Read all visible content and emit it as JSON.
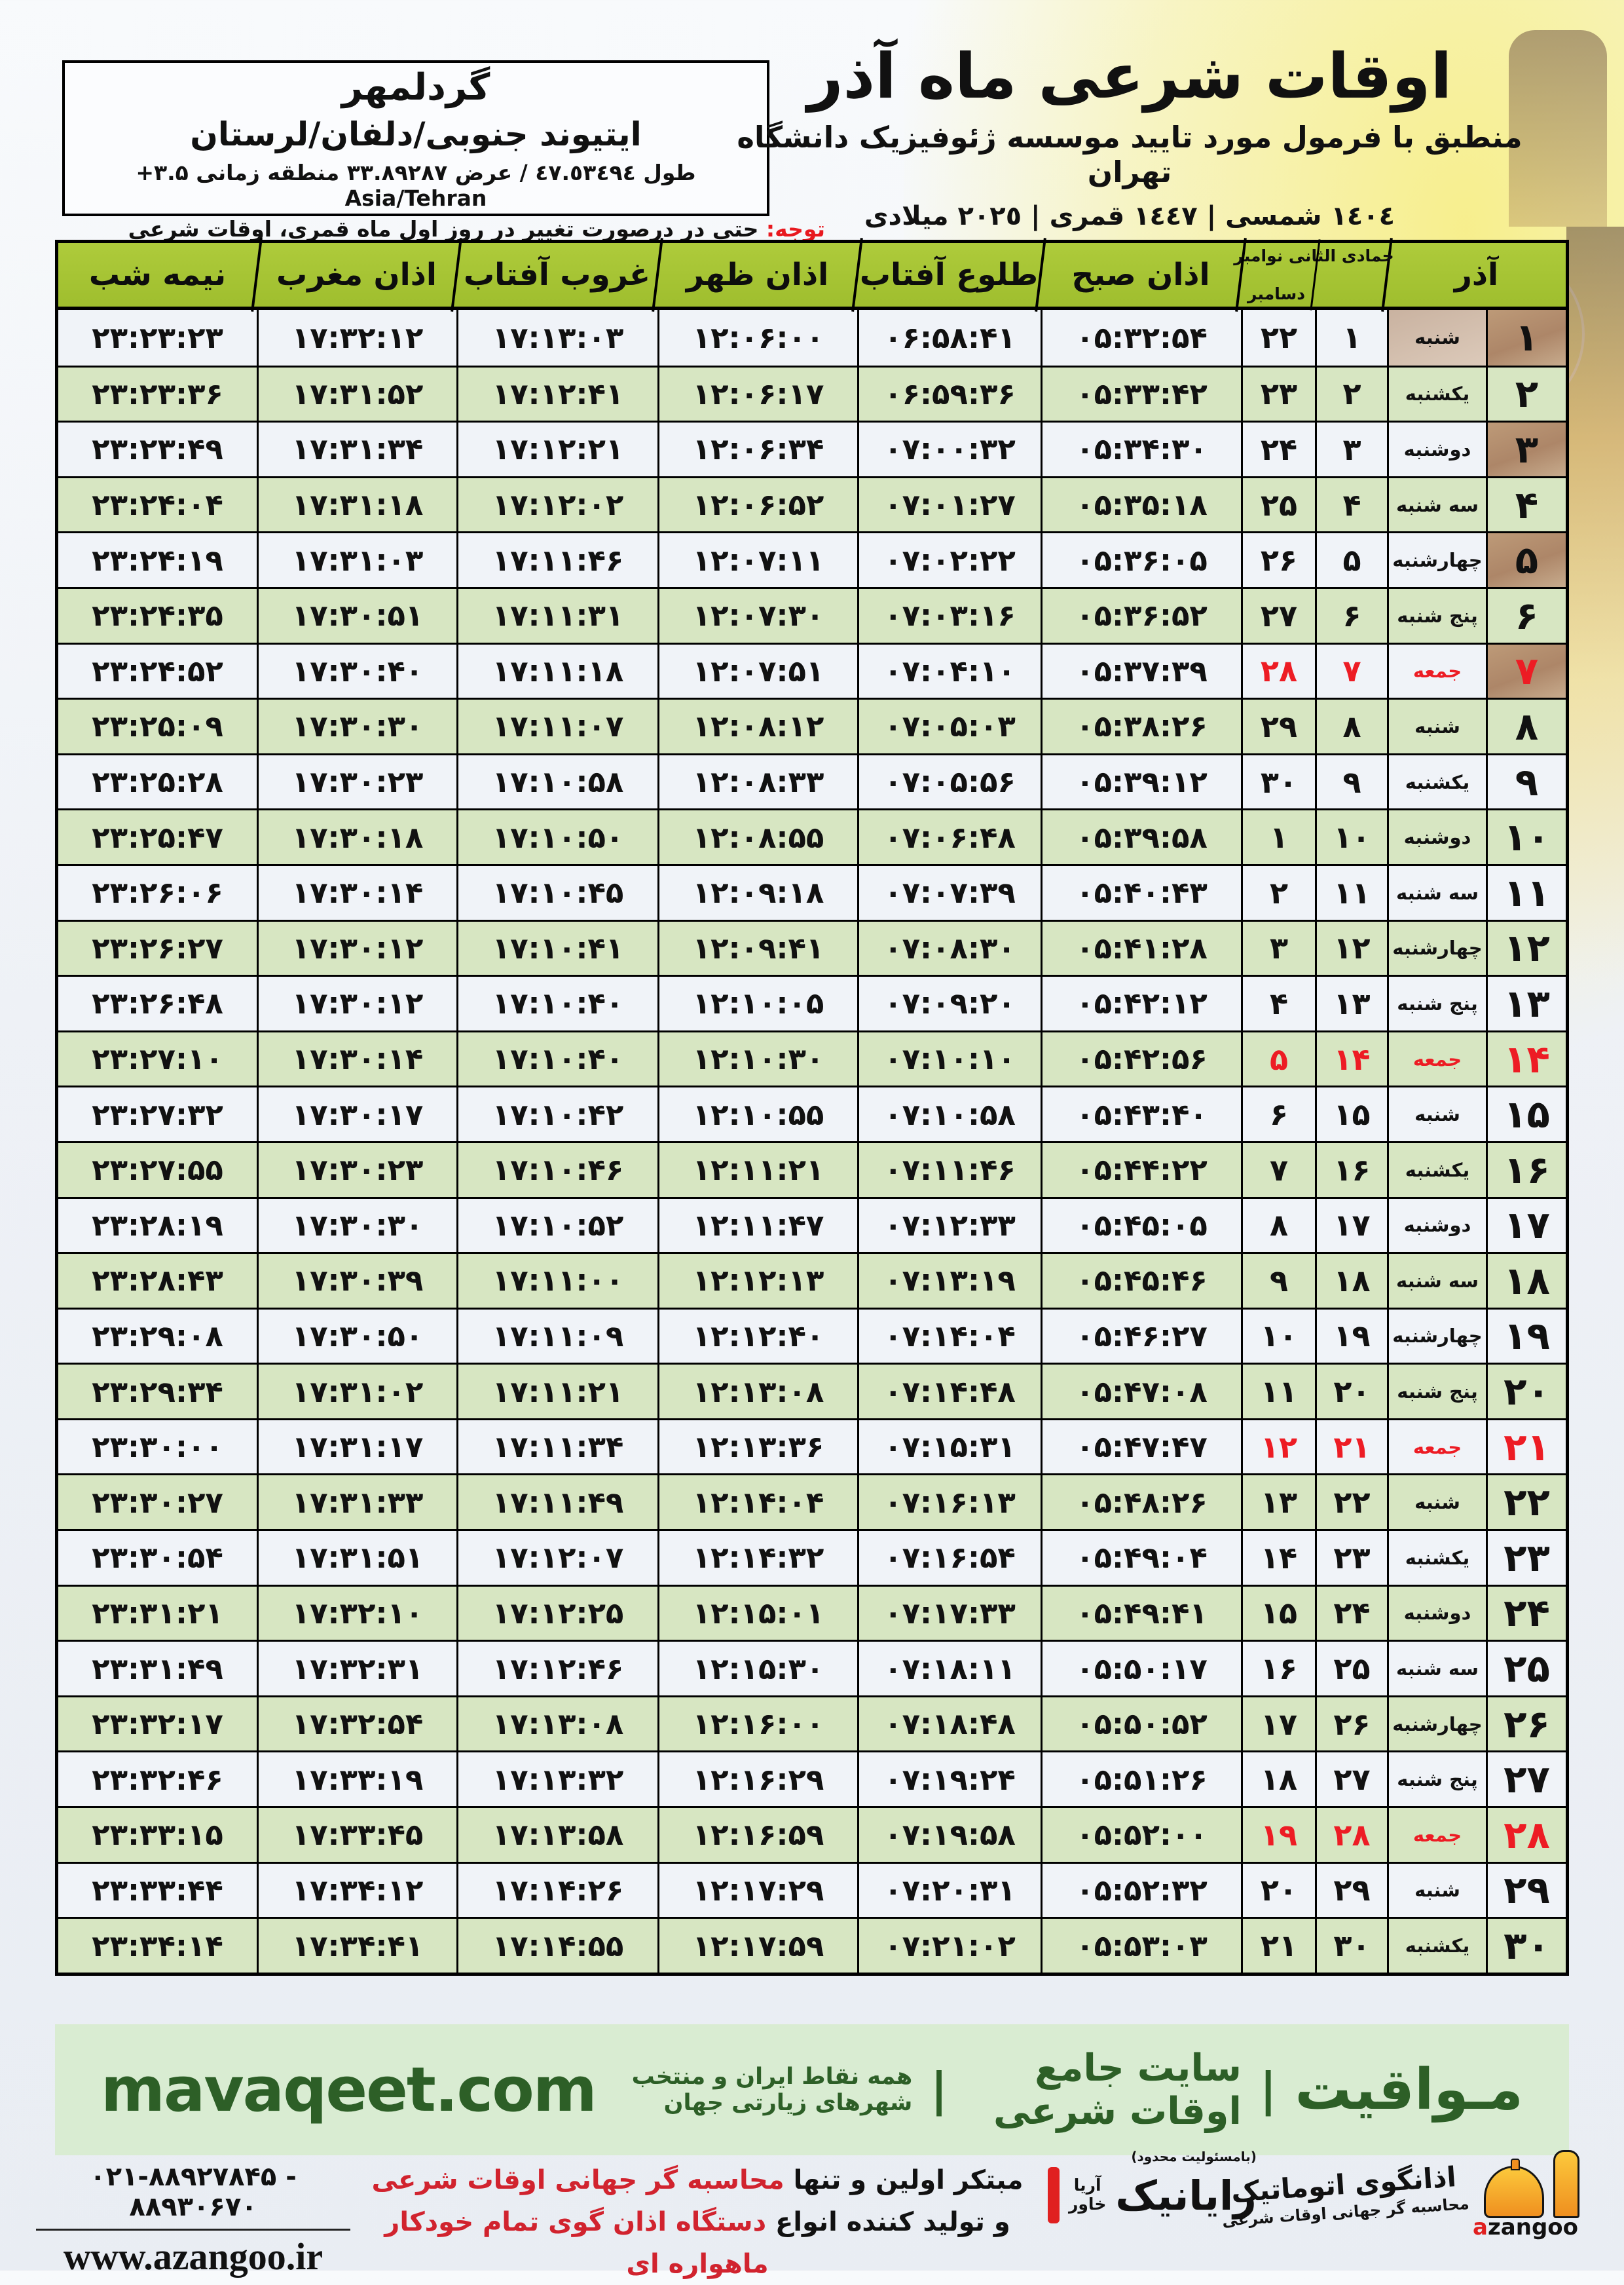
{
  "header": {
    "title": "اوقات شرعی ماه آذر",
    "subtitle": "منطبق با فرمول مورد تایید موسسه ژئوفیزیک دانشگاه تهران",
    "dates": "١٤٠٤ شمسی | ١٤٤٧ قمری | ٢٠٢٥ میلادی",
    "location": {
      "name": "گردلمهر",
      "region": "ایتیوند جنوبی/دلفان/لرستان",
      "coords": "طول ٤٧.٥٣٤٩٤ / عرض ٣٣.٨٩٢٨٧ منطقه زمانی ۳.۵+ Asia/Tehran"
    },
    "note_label": "توجه:",
    "note_text": " حتی در درصورت تغییر در روز اول ماه قمری، اوقات شرعی کماکان برای روزهای شمسی و میلادی معتبر است."
  },
  "table": {
    "header": {
      "azar": "آذر",
      "month_line1": "جمادی الثانی نوامبر",
      "month_line2": "دسامبر",
      "sobh": "اذان صبح",
      "tolu": "طلوع آفتاب",
      "zohr": "اذان ظهر",
      "ghorub": "غروب آفتاب",
      "maghreb": "اذان مغرب",
      "nime": "نیمه شب"
    },
    "rows": [
      {
        "azar": "۱",
        "weekday": "شنبه",
        "lunar": "۱",
        "greg": "۲۲",
        "sobh": "۰۵:۳۲:۵۴",
        "tolu": "۰۶:۵۸:۴۱",
        "zohr": "۱۲:۰۶:۰۰",
        "ghorub": "۱۷:۱۳:۰۳",
        "maghreb": "۱۷:۳۲:۱۲",
        "nime": "۲۳:۲۳:۲۳",
        "friday": false
      },
      {
        "azar": "۲",
        "weekday": "یکشنبه",
        "lunar": "۲",
        "greg": "۲۳",
        "sobh": "۰۵:۳۳:۴۲",
        "tolu": "۰۶:۵۹:۳۶",
        "zohr": "۱۲:۰۶:۱۷",
        "ghorub": "۱۷:۱۲:۴۱",
        "maghreb": "۱۷:۳۱:۵۲",
        "nime": "۲۳:۲۳:۳۶",
        "friday": false
      },
      {
        "azar": "۳",
        "weekday": "دوشنبه",
        "lunar": "۳",
        "greg": "۲۴",
        "sobh": "۰۵:۳۴:۳۰",
        "tolu": "۰۷:۰۰:۳۲",
        "zohr": "۱۲:۰۶:۳۴",
        "ghorub": "۱۷:۱۲:۲۱",
        "maghreb": "۱۷:۳۱:۳۴",
        "nime": "۲۳:۲۳:۴۹",
        "friday": false
      },
      {
        "azar": "۴",
        "weekday": "سه شنبه",
        "lunar": "۴",
        "greg": "۲۵",
        "sobh": "۰۵:۳۵:۱۸",
        "tolu": "۰۷:۰۱:۲۷",
        "zohr": "۱۲:۰۶:۵۲",
        "ghorub": "۱۷:۱۲:۰۲",
        "maghreb": "۱۷:۳۱:۱۸",
        "nime": "۲۳:۲۴:۰۴",
        "friday": false
      },
      {
        "azar": "۵",
        "weekday": "چهارشنبه",
        "lunar": "۵",
        "greg": "۲۶",
        "sobh": "۰۵:۳۶:۰۵",
        "tolu": "۰۷:۰۲:۲۲",
        "zohr": "۱۲:۰۷:۱۱",
        "ghorub": "۱۷:۱۱:۴۶",
        "maghreb": "۱۷:۳۱:۰۳",
        "nime": "۲۳:۲۴:۱۹",
        "friday": false
      },
      {
        "azar": "۶",
        "weekday": "پنج شنبه",
        "lunar": "۶",
        "greg": "۲۷",
        "sobh": "۰۵:۳۶:۵۲",
        "tolu": "۰۷:۰۳:۱۶",
        "zohr": "۱۲:۰۷:۳۰",
        "ghorub": "۱۷:۱۱:۳۱",
        "maghreb": "۱۷:۳۰:۵۱",
        "nime": "۲۳:۲۴:۳۵",
        "friday": false
      },
      {
        "azar": "۷",
        "weekday": "جمعه",
        "lunar": "۷",
        "greg": "۲۸",
        "sobh": "۰۵:۳۷:۳۹",
        "tolu": "۰۷:۰۴:۱۰",
        "zohr": "۱۲:۰۷:۵۱",
        "ghorub": "۱۷:۱۱:۱۸",
        "maghreb": "۱۷:۳۰:۴۰",
        "nime": "۲۳:۲۴:۵۲",
        "friday": true
      },
      {
        "azar": "۸",
        "weekday": "شنبه",
        "lunar": "۸",
        "greg": "۲۹",
        "sobh": "۰۵:۳۸:۲۶",
        "tolu": "۰۷:۰۵:۰۳",
        "zohr": "۱۲:۰۸:۱۲",
        "ghorub": "۱۷:۱۱:۰۷",
        "maghreb": "۱۷:۳۰:۳۰",
        "nime": "۲۳:۲۵:۰۹",
        "friday": false
      },
      {
        "azar": "۹",
        "weekday": "یکشنبه",
        "lunar": "۹",
        "greg": "۳۰",
        "sobh": "۰۵:۳۹:۱۲",
        "tolu": "۰۷:۰۵:۵۶",
        "zohr": "۱۲:۰۸:۳۳",
        "ghorub": "۱۷:۱۰:۵۸",
        "maghreb": "۱۷:۳۰:۲۳",
        "nime": "۲۳:۲۵:۲۸",
        "friday": false
      },
      {
        "azar": "۱۰",
        "weekday": "دوشنبه",
        "lunar": "۱۰",
        "greg": "۱",
        "sobh": "۰۵:۳۹:۵۸",
        "tolu": "۰۷:۰۶:۴۸",
        "zohr": "۱۲:۰۸:۵۵",
        "ghorub": "۱۷:۱۰:۵۰",
        "maghreb": "۱۷:۳۰:۱۸",
        "nime": "۲۳:۲۵:۴۷",
        "friday": false
      },
      {
        "azar": "۱۱",
        "weekday": "سه شنبه",
        "lunar": "۱۱",
        "greg": "۲",
        "sobh": "۰۵:۴۰:۴۳",
        "tolu": "۰۷:۰۷:۳۹",
        "zohr": "۱۲:۰۹:۱۸",
        "ghorub": "۱۷:۱۰:۴۵",
        "maghreb": "۱۷:۳۰:۱۴",
        "nime": "۲۳:۲۶:۰۶",
        "friday": false
      },
      {
        "azar": "۱۲",
        "weekday": "چهارشنبه",
        "lunar": "۱۲",
        "greg": "۳",
        "sobh": "۰۵:۴۱:۲۸",
        "tolu": "۰۷:۰۸:۳۰",
        "zohr": "۱۲:۰۹:۴۱",
        "ghorub": "۱۷:۱۰:۴۱",
        "maghreb": "۱۷:۳۰:۱۲",
        "nime": "۲۳:۲۶:۲۷",
        "friday": false
      },
      {
        "azar": "۱۳",
        "weekday": "پنج شنبه",
        "lunar": "۱۳",
        "greg": "۴",
        "sobh": "۰۵:۴۲:۱۲",
        "tolu": "۰۷:۰۹:۲۰",
        "zohr": "۱۲:۱۰:۰۵",
        "ghorub": "۱۷:۱۰:۴۰",
        "maghreb": "۱۷:۳۰:۱۲",
        "nime": "۲۳:۲۶:۴۸",
        "friday": false
      },
      {
        "azar": "۱۴",
        "weekday": "جمعه",
        "lunar": "۱۴",
        "greg": "۵",
        "sobh": "۰۵:۴۲:۵۶",
        "tolu": "۰۷:۱۰:۱۰",
        "zohr": "۱۲:۱۰:۳۰",
        "ghorub": "۱۷:۱۰:۴۰",
        "maghreb": "۱۷:۳۰:۱۴",
        "nime": "۲۳:۲۷:۱۰",
        "friday": true
      },
      {
        "azar": "۱۵",
        "weekday": "شنبه",
        "lunar": "۱۵",
        "greg": "۶",
        "sobh": "۰۵:۴۳:۴۰",
        "tolu": "۰۷:۱۰:۵۸",
        "zohr": "۱۲:۱۰:۵۵",
        "ghorub": "۱۷:۱۰:۴۲",
        "maghreb": "۱۷:۳۰:۱۷",
        "nime": "۲۳:۲۷:۳۲",
        "friday": false
      },
      {
        "azar": "۱۶",
        "weekday": "یکشنبه",
        "lunar": "۱۶",
        "greg": "۷",
        "sobh": "۰۵:۴۴:۲۲",
        "tolu": "۰۷:۱۱:۴۶",
        "zohr": "۱۲:۱۱:۲۱",
        "ghorub": "۱۷:۱۰:۴۶",
        "maghreb": "۱۷:۳۰:۲۳",
        "nime": "۲۳:۲۷:۵۵",
        "friday": false
      },
      {
        "azar": "۱۷",
        "weekday": "دوشنبه",
        "lunar": "۱۷",
        "greg": "۸",
        "sobh": "۰۵:۴۵:۰۵",
        "tolu": "۰۷:۱۲:۳۳",
        "zohr": "۱۲:۱۱:۴۷",
        "ghorub": "۱۷:۱۰:۵۲",
        "maghreb": "۱۷:۳۰:۳۰",
        "nime": "۲۳:۲۸:۱۹",
        "friday": false
      },
      {
        "azar": "۱۸",
        "weekday": "سه شنبه",
        "lunar": "۱۸",
        "greg": "۹",
        "sobh": "۰۵:۴۵:۴۶",
        "tolu": "۰۷:۱۳:۱۹",
        "zohr": "۱۲:۱۲:۱۳",
        "ghorub": "۱۷:۱۱:۰۰",
        "maghreb": "۱۷:۳۰:۳۹",
        "nime": "۲۳:۲۸:۴۳",
        "friday": false
      },
      {
        "azar": "۱۹",
        "weekday": "چهارشنبه",
        "lunar": "۱۹",
        "greg": "۱۰",
        "sobh": "۰۵:۴۶:۲۷",
        "tolu": "۰۷:۱۴:۰۴",
        "zohr": "۱۲:۱۲:۴۰",
        "ghorub": "۱۷:۱۱:۰۹",
        "maghreb": "۱۷:۳۰:۵۰",
        "nime": "۲۳:۲۹:۰۸",
        "friday": false
      },
      {
        "azar": "۲۰",
        "weekday": "پنج شنبه",
        "lunar": "۲۰",
        "greg": "۱۱",
        "sobh": "۰۵:۴۷:۰۸",
        "tolu": "۰۷:۱۴:۴۸",
        "zohr": "۱۲:۱۳:۰۸",
        "ghorub": "۱۷:۱۱:۲۱",
        "maghreb": "۱۷:۳۱:۰۲",
        "nime": "۲۳:۲۹:۳۴",
        "friday": false
      },
      {
        "azar": "۲۱",
        "weekday": "جمعه",
        "lunar": "۲۱",
        "greg": "۱۲",
        "sobh": "۰۵:۴۷:۴۷",
        "tolu": "۰۷:۱۵:۳۱",
        "zohr": "۱۲:۱۳:۳۶",
        "ghorub": "۱۷:۱۱:۳۴",
        "maghreb": "۱۷:۳۱:۱۷",
        "nime": "۲۳:۳۰:۰۰",
        "friday": true
      },
      {
        "azar": "۲۲",
        "weekday": "شنبه",
        "lunar": "۲۲",
        "greg": "۱۳",
        "sobh": "۰۵:۴۸:۲۶",
        "tolu": "۰۷:۱۶:۱۳",
        "zohr": "۱۲:۱۴:۰۴",
        "ghorub": "۱۷:۱۱:۴۹",
        "maghreb": "۱۷:۳۱:۳۳",
        "nime": "۲۳:۳۰:۲۷",
        "friday": false
      },
      {
        "azar": "۲۳",
        "weekday": "یکشنبه",
        "lunar": "۲۳",
        "greg": "۱۴",
        "sobh": "۰۵:۴۹:۰۴",
        "tolu": "۰۷:۱۶:۵۴",
        "zohr": "۱۲:۱۴:۳۲",
        "ghorub": "۱۷:۱۲:۰۷",
        "maghreb": "۱۷:۳۱:۵۱",
        "nime": "۲۳:۳۰:۵۴",
        "friday": false
      },
      {
        "azar": "۲۴",
        "weekday": "دوشنبه",
        "lunar": "۲۴",
        "greg": "۱۵",
        "sobh": "۰۵:۴۹:۴۱",
        "tolu": "۰۷:۱۷:۳۳",
        "zohr": "۱۲:۱۵:۰۱",
        "ghorub": "۱۷:۱۲:۲۵",
        "maghreb": "۱۷:۳۲:۱۰",
        "nime": "۲۳:۳۱:۲۱",
        "friday": false
      },
      {
        "azar": "۲۵",
        "weekday": "سه شنبه",
        "lunar": "۲۵",
        "greg": "۱۶",
        "sobh": "۰۵:۵۰:۱۷",
        "tolu": "۰۷:۱۸:۱۱",
        "zohr": "۱۲:۱۵:۳۰",
        "ghorub": "۱۷:۱۲:۴۶",
        "maghreb": "۱۷:۳۲:۳۱",
        "nime": "۲۳:۳۱:۴۹",
        "friday": false
      },
      {
        "azar": "۲۶",
        "weekday": "چهارشنبه",
        "lunar": "۲۶",
        "greg": "۱۷",
        "sobh": "۰۵:۵۰:۵۲",
        "tolu": "۰۷:۱۸:۴۸",
        "zohr": "۱۲:۱۶:۰۰",
        "ghorub": "۱۷:۱۳:۰۸",
        "maghreb": "۱۷:۳۲:۵۴",
        "nime": "۲۳:۳۲:۱۷",
        "friday": false
      },
      {
        "azar": "۲۷",
        "weekday": "پنج شنبه",
        "lunar": "۲۷",
        "greg": "۱۸",
        "sobh": "۰۵:۵۱:۲۶",
        "tolu": "۰۷:۱۹:۲۴",
        "zohr": "۱۲:۱۶:۲۹",
        "ghorub": "۱۷:۱۳:۳۲",
        "maghreb": "۱۷:۳۳:۱۹",
        "nime": "۲۳:۳۲:۴۶",
        "friday": false
      },
      {
        "azar": "۲۸",
        "weekday": "جمعه",
        "lunar": "۲۸",
        "greg": "۱۹",
        "sobh": "۰۵:۵۲:۰۰",
        "tolu": "۰۷:۱۹:۵۸",
        "zohr": "۱۲:۱۶:۵۹",
        "ghorub": "۱۷:۱۳:۵۸",
        "maghreb": "۱۷:۳۳:۴۵",
        "nime": "۲۳:۳۳:۱۵",
        "friday": true
      },
      {
        "azar": "۲۹",
        "weekday": "شنبه",
        "lunar": "۲۹",
        "greg": "۲۰",
        "sobh": "۰۵:۵۲:۳۲",
        "tolu": "۰۷:۲۰:۳۱",
        "zohr": "۱۲:۱۷:۲۹",
        "ghorub": "۱۷:۱۴:۲۶",
        "maghreb": "۱۷:۳۴:۱۲",
        "nime": "۲۳:۳۳:۴۴",
        "friday": false
      },
      {
        "azar": "۳۰",
        "weekday": "یکشنبه",
        "lunar": "۳۰",
        "greg": "۲۱",
        "sobh": "۰۵:۵۳:۰۳",
        "tolu": "۰۷:۲۱:۰۲",
        "zohr": "۱۲:۱۷:۵۹",
        "ghorub": "۱۷:۱۴:۵۵",
        "maghreb": "۱۷:۳۴:۴۱",
        "nime": "۲۳:۳۴:۱۴",
        "friday": false
      }
    ]
  },
  "mavaqeet": {
    "brand": "مـواقیت",
    "separator": "|",
    "tagline": "سایت جامع اوقات شرعی",
    "scope": "همه نقاط ایران و منتخب شهرهای زیارتی جهان",
    "site": "mavaqeet.com",
    "brand_color": "#2d5f27"
  },
  "footer": {
    "phone": "۰۲۱-۸۸۹۲۷۸۴۵ - ۸۸۹۳۰۶۷۰",
    "url": "www.azangoo.ir",
    "line1_black": "مبتکر اولین و تنها ",
    "line1_red": "محاسبه گر جهانی اوقات شرعی",
    "line2_black": "و تولید کننده انواع ",
    "line2_red": "دستگاه اذان گوی تمام خودکار ماهواره ای",
    "rayanik_note": "(بامسئولیت محدود)",
    "rayanik_name": "رایانیک",
    "rayanik_sub1": "آریا",
    "rayanik_sub2": "خاور",
    "azangoo_fa": "اذانگوی اتوماتیک",
    "azangoo_fa_sub": "محاسبه گر جهانی اوقات شرعی",
    "azangoo_en_a": "a",
    "azangoo_en_rest": "zangoo",
    "accent_red": "#d1232e",
    "accent_green": "#8ec41e"
  }
}
